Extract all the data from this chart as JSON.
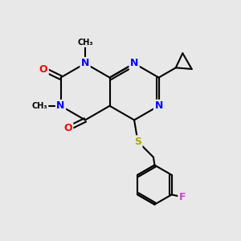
{
  "background_color": "#e8e8e8",
  "atom_colors": {
    "C": "#000000",
    "N": "#0000ff",
    "O": "#ff0000",
    "S": "#aaaa00",
    "F": "#cc44cc",
    "H": "#000000"
  },
  "bond_color": "#000000",
  "bond_width": 1.5,
  "dpi": 100,
  "figsize": [
    3.0,
    3.0
  ]
}
